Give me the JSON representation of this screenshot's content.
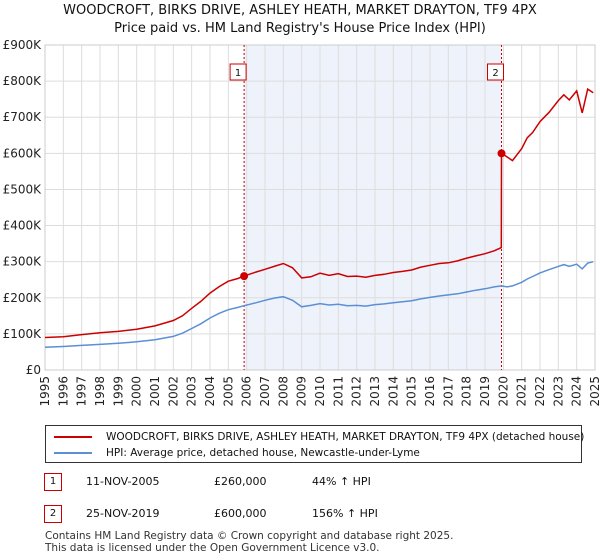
{
  "title_line1": "WOODCROFT, BIRKS DRIVE, ASHLEY HEATH, MARKET DRAYTON, TF9 4PX",
  "title_line2": "Price paid vs. HM Land Registry's House Price Index (HPI)",
  "chart_data": {
    "type": "line",
    "ylim": [
      0,
      900000
    ],
    "xlim": [
      1995,
      2025
    ],
    "y_ticks": [
      {
        "value": 0,
        "label": "£0"
      },
      {
        "value": 100000,
        "label": "£100K"
      },
      {
        "value": 200000,
        "label": "£200K"
      },
      {
        "value": 300000,
        "label": "£300K"
      },
      {
        "value": 400000,
        "label": "£400K"
      },
      {
        "value": 500000,
        "label": "£500K"
      },
      {
        "value": 600000,
        "label": "£600K"
      },
      {
        "value": 700000,
        "label": "£700K"
      },
      {
        "value": 800000,
        "label": "£800K"
      },
      {
        "value": 900000,
        "label": "£900K"
      }
    ],
    "x_ticks": [
      "1995",
      "1996",
      "1997",
      "1998",
      "1999",
      "2000",
      "2001",
      "2002",
      "2003",
      "2004",
      "2005",
      "2006",
      "2007",
      "2008",
      "2009",
      "2010",
      "2011",
      "2012",
      "2013",
      "2014",
      "2015",
      "2016",
      "2017",
      "2018",
      "2019",
      "2020",
      "2021",
      "2022",
      "2023",
      "2024",
      "2025"
    ],
    "shaded_range": [
      2005.86,
      2019.9
    ],
    "series": [
      {
        "name": "WOODCROFT, BIRKS DRIVE, ASHLEY HEATH, MARKET DRAYTON, TF9 4PX (detached house)",
        "color": "#cc0000",
        "x": [
          1995.0,
          1996.0,
          1997.0,
          1998.0,
          1999.0,
          2000.0,
          2001.0,
          2002.0,
          2002.5,
          2003.0,
          2003.5,
          2004.0,
          2004.5,
          2005.0,
          2005.5,
          2005.86,
          2006.5,
          2007.0,
          2007.5,
          2008.0,
          2008.5,
          2009.0,
          2009.5,
          2010.0,
          2010.5,
          2011.0,
          2011.5,
          2012.0,
          2012.5,
          2013.0,
          2013.5,
          2014.0,
          2014.5,
          2015.0,
          2015.5,
          2016.0,
          2016.5,
          2017.0,
          2017.5,
          2018.0,
          2018.5,
          2019.0,
          2019.5,
          2019.89,
          2019.9,
          2020.2,
          2020.5,
          2021.0,
          2021.3,
          2021.6,
          2022.0,
          2022.5,
          2023.0,
          2023.3,
          2023.6,
          2024.0,
          2024.3,
          2024.6,
          2024.9
        ],
        "values": [
          90000,
          92000,
          98000,
          103000,
          107000,
          113000,
          122000,
          137000,
          150000,
          171000,
          190000,
          213000,
          231000,
          246000,
          253000,
          260000,
          271000,
          279000,
          287000,
          295000,
          283000,
          255000,
          258000,
          268000,
          262000,
          267000,
          259000,
          260000,
          257000,
          262000,
          265000,
          270000,
          273000,
          277000,
          285000,
          290000,
          295000,
          297000,
          302000,
          310000,
          316000,
          322000,
          330000,
          339000,
          600000,
          590000,
          580000,
          613000,
          643000,
          658000,
          688000,
          714000,
          746000,
          762000,
          748000,
          773000,
          712000,
          778000,
          768000
        ]
      },
      {
        "name": "HPI: Average price, detached house, Newcastle-under-Lyme",
        "color": "#5b8fd6",
        "x": [
          1995.0,
          1996.0,
          1997.0,
          1998.0,
          1999.0,
          2000.0,
          2001.0,
          2002.0,
          2002.5,
          2003.0,
          2003.5,
          2004.0,
          2004.5,
          2005.0,
          2005.5,
          2005.86,
          2006.5,
          2007.0,
          2007.5,
          2008.0,
          2008.5,
          2009.0,
          2009.5,
          2010.0,
          2010.5,
          2011.0,
          2011.5,
          2012.0,
          2012.5,
          2013.0,
          2013.5,
          2014.0,
          2014.5,
          2015.0,
          2015.5,
          2016.0,
          2016.5,
          2017.0,
          2017.5,
          2018.0,
          2018.5,
          2019.0,
          2019.5,
          2019.9,
          2020.2,
          2020.5,
          2021.0,
          2021.3,
          2021.6,
          2022.0,
          2022.5,
          2023.0,
          2023.3,
          2023.6,
          2024.0,
          2024.3,
          2024.6,
          2024.9
        ],
        "values": [
          63000,
          65000,
          68000,
          71000,
          74000,
          78000,
          84000,
          93000,
          102000,
          115000,
          128000,
          144000,
          157000,
          167000,
          173000,
          178000,
          186000,
          193000,
          199000,
          203000,
          193000,
          175000,
          179000,
          184000,
          180000,
          182000,
          178000,
          179000,
          177000,
          181000,
          183000,
          186000,
          189000,
          192000,
          197000,
          201000,
          205000,
          208000,
          211000,
          216000,
          221000,
          225000,
          230000,
          233000,
          230000,
          233000,
          243000,
          252000,
          259000,
          269000,
          278000,
          287000,
          292000,
          287000,
          293000,
          280000,
          296000,
          300000
        ]
      }
    ],
    "markers": [
      {
        "label": "1",
        "x": 2005.86,
        "y": 260000
      },
      {
        "label": "2",
        "x": 2019.9,
        "y": 600000
      }
    ]
  },
  "legend": {
    "property": "WOODCROFT, BIRKS DRIVE, ASHLEY HEATH, MARKET DRAYTON, TF9 4PX (detached house)",
    "hpi": "HPI: Average price, detached house, Newcastle-under-Lyme"
  },
  "sales": [
    {
      "num": "1",
      "date": "11-NOV-2005",
      "price": "£260,000",
      "hpi": "44% ↑ HPI"
    },
    {
      "num": "2",
      "date": "25-NOV-2019",
      "price": "£600,000",
      "hpi": "156% ↑ HPI"
    }
  ],
  "footer": {
    "line1": "Contains HM Land Registry data © Crown copyright and database right 2025.",
    "line2": "This data is licensed under the Open Government Licence v3.0."
  }
}
